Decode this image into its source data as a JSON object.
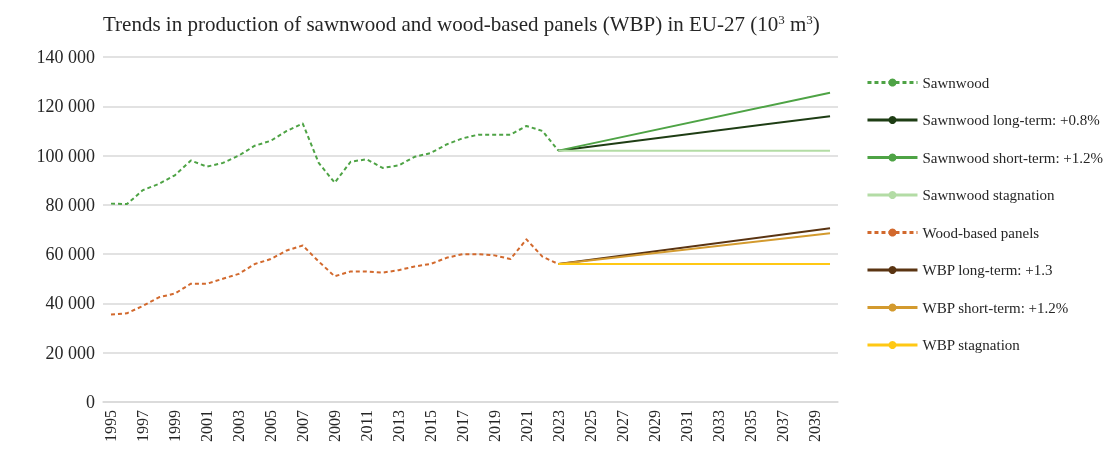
{
  "chart_data": {
    "type": "line",
    "title": "Trends in production of sawnwood and wood-based panels (WBP) in EU-27 (10$^{3}$ m$^{3}$)",
    "categories": [
      "1995",
      null,
      "1997",
      null,
      "1999",
      null,
      "2001",
      null,
      "2003",
      null,
      "2005",
      null,
      "2007",
      null,
      "2009",
      null,
      "2011",
      null,
      "2013",
      null,
      "2015",
      null,
      "2017",
      null,
      "2019",
      null,
      "2021",
      null,
      "2023",
      null,
      "2025",
      null,
      "2027",
      null,
      "2029",
      null,
      "2031",
      null,
      "2033",
      null,
      "2035",
      null,
      "2037",
      null,
      "2039",
      null
    ],
    "series": [
      {
        "name": "Sawnwood",
        "color": "#4ea345",
        "line_style": "dashed",
        "values": [
          80500,
          80300,
          86000,
          88500,
          92000,
          98000,
          95500,
          97000,
          100000,
          104000,
          106000,
          110000,
          113000,
          97000,
          89000,
          97500,
          98500,
          95000,
          96000,
          99500,
          101000,
          104500,
          107000,
          108500,
          108500,
          108500,
          112000,
          110000,
          102000,
          null,
          null,
          null,
          null,
          null,
          null,
          null,
          null,
          null,
          null,
          null,
          null,
          null,
          null,
          null,
          null,
          null
        ]
      },
      {
        "name": "Sawnwood long-term: +0.8%",
        "color": "#1e3d14",
        "line_style": "solid",
        "values": [
          null,
          null,
          null,
          null,
          null,
          null,
          null,
          null,
          null,
          null,
          null,
          null,
          null,
          null,
          null,
          null,
          null,
          null,
          null,
          null,
          null,
          null,
          null,
          null,
          null,
          null,
          null,
          null,
          102000,
          null,
          null,
          null,
          null,
          null,
          null,
          null,
          null,
          null,
          null,
          null,
          null,
          null,
          null,
          null,
          null,
          116000
        ]
      },
      {
        "name": "Sawnwood short-term: +1.2%",
        "color": "#4ea345",
        "line_style": "solid",
        "values": [
          null,
          null,
          null,
          null,
          null,
          null,
          null,
          null,
          null,
          null,
          null,
          null,
          null,
          null,
          null,
          null,
          null,
          null,
          null,
          null,
          null,
          null,
          null,
          null,
          null,
          null,
          null,
          null,
          102000,
          null,
          null,
          null,
          null,
          null,
          null,
          null,
          null,
          null,
          null,
          null,
          null,
          null,
          null,
          null,
          null,
          125500
        ]
      },
      {
        "name": "Sawnwood stagnation",
        "color": "#b3dca5",
        "line_style": "solid",
        "values": [
          null,
          null,
          null,
          null,
          null,
          null,
          null,
          null,
          null,
          null,
          null,
          null,
          null,
          null,
          null,
          null,
          null,
          null,
          null,
          null,
          null,
          null,
          null,
          null,
          null,
          null,
          null,
          null,
          102000,
          null,
          null,
          null,
          null,
          null,
          null,
          null,
          null,
          null,
          null,
          null,
          null,
          null,
          null,
          null,
          null,
          102000
        ]
      },
      {
        "name": "Wood-based panels",
        "color": "#d2692d",
        "line_style": "dashed",
        "values": [
          35500,
          36000,
          39000,
          42500,
          44000,
          48000,
          48000,
          50000,
          52000,
          56000,
          58000,
          61500,
          63500,
          57000,
          51000,
          53000,
          53000,
          52500,
          53500,
          55000,
          56000,
          58500,
          60000,
          60000,
          59500,
          58000,
          66000,
          59000,
          56000,
          null,
          null,
          null,
          null,
          null,
          null,
          null,
          null,
          null,
          null,
          null,
          null,
          null,
          null,
          null,
          null,
          null
        ]
      },
      {
        "name": "WBP long-term: +1.3",
        "color": "#5a3412",
        "line_style": "solid",
        "values": [
          null,
          null,
          null,
          null,
          null,
          null,
          null,
          null,
          null,
          null,
          null,
          null,
          null,
          null,
          null,
          null,
          null,
          null,
          null,
          null,
          null,
          null,
          null,
          null,
          null,
          null,
          null,
          null,
          56000,
          null,
          null,
          null,
          null,
          null,
          null,
          null,
          null,
          null,
          null,
          null,
          null,
          null,
          null,
          null,
          null,
          70500
        ]
      },
      {
        "name": "WBP short-term: +1.2%",
        "color": "#d39a2e",
        "line_style": "solid",
        "values": [
          null,
          null,
          null,
          null,
          null,
          null,
          null,
          null,
          null,
          null,
          null,
          null,
          null,
          null,
          null,
          null,
          null,
          null,
          null,
          null,
          null,
          null,
          null,
          null,
          null,
          null,
          null,
          null,
          56000,
          null,
          null,
          null,
          null,
          null,
          null,
          null,
          null,
          null,
          null,
          null,
          null,
          null,
          null,
          null,
          null,
          68500
        ]
      },
      {
        "name": "WBP stagnation",
        "color": "#ffc814",
        "line_style": "solid",
        "values": [
          null,
          null,
          null,
          null,
          null,
          null,
          null,
          null,
          null,
          null,
          null,
          null,
          null,
          null,
          null,
          null,
          null,
          null,
          null,
          null,
          null,
          null,
          null,
          null,
          null,
          null,
          null,
          null,
          56000,
          null,
          null,
          null,
          null,
          null,
          null,
          null,
          null,
          null,
          null,
          null,
          null,
          null,
          null,
          null,
          null,
          56000
        ]
      }
    ],
    "ylim": [
      0,
      140000
    ],
    "yticks": [
      0,
      20000,
      40000,
      60000,
      80000,
      100000,
      120000,
      140000
    ],
    "grid": "y",
    "legend": "right",
    "marker": "none"
  }
}
